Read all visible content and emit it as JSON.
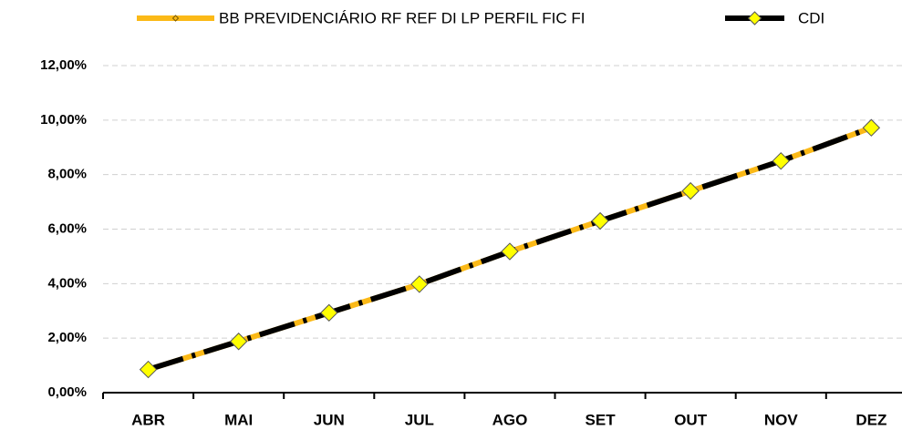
{
  "chart_data": {
    "type": "line",
    "categories": [
      "ABR",
      "MAI",
      "JUN",
      "JUL",
      "AGO",
      "SET",
      "OUT",
      "NOV",
      "DEZ"
    ],
    "series": [
      {
        "name": "BB PREVIDENCIÁRIO RF REF DI LP PERFIL FIC FI",
        "color": "#fbb917",
        "values": [
          0.85,
          1.88,
          2.93,
          3.98,
          5.18,
          6.3,
          7.4,
          8.5,
          9.72
        ]
      },
      {
        "name": "CDI",
        "color": "#000000",
        "values": [
          0.85,
          1.88,
          2.93,
          3.98,
          5.18,
          6.3,
          7.4,
          8.5,
          9.72
        ]
      }
    ],
    "ylim": [
      0,
      12
    ],
    "yticks": [
      {
        "value": 0,
        "label": "0,00%"
      },
      {
        "value": 2,
        "label": "2,00%"
      },
      {
        "value": 4,
        "label": "4,00%"
      },
      {
        "value": 6,
        "label": "6,00%"
      },
      {
        "value": 8,
        "label": "8,00%"
      },
      {
        "value": 10,
        "label": "10,00%"
      },
      {
        "value": 12,
        "label": "12,00%"
      }
    ],
    "grid": true
  }
}
